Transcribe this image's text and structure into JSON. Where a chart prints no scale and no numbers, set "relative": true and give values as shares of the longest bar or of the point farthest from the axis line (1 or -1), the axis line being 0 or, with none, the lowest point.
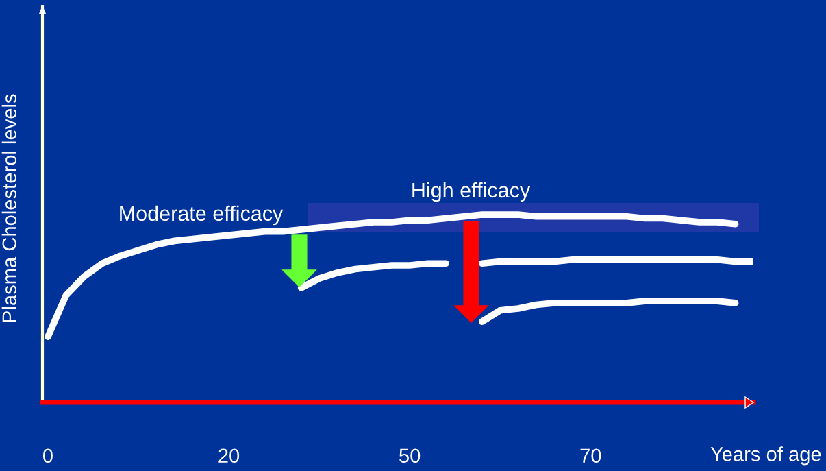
{
  "chart_data": {
    "type": "line",
    "relative": true,
    "xlabel": "Years of age",
    "ylabel": "Plasma Cholesterol levels",
    "categories": [
      "0",
      null,
      null,
      null,
      null,
      null,
      null,
      null,
      null,
      null,
      "20",
      null,
      null,
      null,
      null,
      null,
      null,
      null,
      null,
      null,
      "50",
      null,
      null,
      null,
      null,
      null,
      null,
      null,
      null,
      null,
      "70",
      null,
      null,
      null,
      null,
      null,
      null,
      null,
      null,
      null
    ],
    "annotations": [
      "Moderate efficacy",
      "High efficacy"
    ],
    "marker": "none",
    "line_style": "solid",
    "grid": false,
    "legend": false,
    "series": [
      {
        "color": "#ffffff",
        "values": [
          0.35,
          0.57,
          0.67,
          0.74,
          0.78,
          0.81,
          0.84,
          0.86,
          0.87,
          0.88,
          0.89,
          0.9,
          0.91,
          0.91,
          0.92,
          0.93,
          0.94,
          0.95,
          0.96,
          0.96,
          0.97,
          0.97,
          0.98,
          0.99,
          1.0,
          1.0,
          1.0,
          0.99,
          0.99,
          0.99,
          0.99,
          0.99,
          0.99,
          0.98,
          0.98,
          0.97,
          0.96,
          0.96,
          0.95,
          null
        ]
      },
      {
        "color": "#ffffff",
        "values": [
          null,
          null,
          null,
          null,
          null,
          null,
          null,
          null,
          null,
          null,
          null,
          null,
          null,
          null,
          0.61,
          0.66,
          0.69,
          0.71,
          0.72,
          0.73,
          0.73,
          0.74,
          0.74,
          null,
          0.74,
          0.75,
          0.75,
          0.75,
          0.75,
          0.76,
          0.76,
          0.76,
          0.76,
          0.76,
          0.76,
          0.76,
          0.76,
          0.76,
          0.75,
          0.75
        ]
      },
      {
        "color": "#ffffff",
        "values": [
          null,
          null,
          null,
          null,
          null,
          null,
          null,
          null,
          null,
          null,
          null,
          null,
          null,
          null,
          null,
          null,
          null,
          null,
          null,
          null,
          null,
          null,
          null,
          null,
          0.43,
          0.49,
          0.5,
          0.52,
          0.53,
          0.53,
          0.53,
          0.53,
          0.53,
          0.54,
          0.54,
          0.54,
          0.54,
          0.54,
          0.53,
          null
        ]
      }
    ]
  }
}
